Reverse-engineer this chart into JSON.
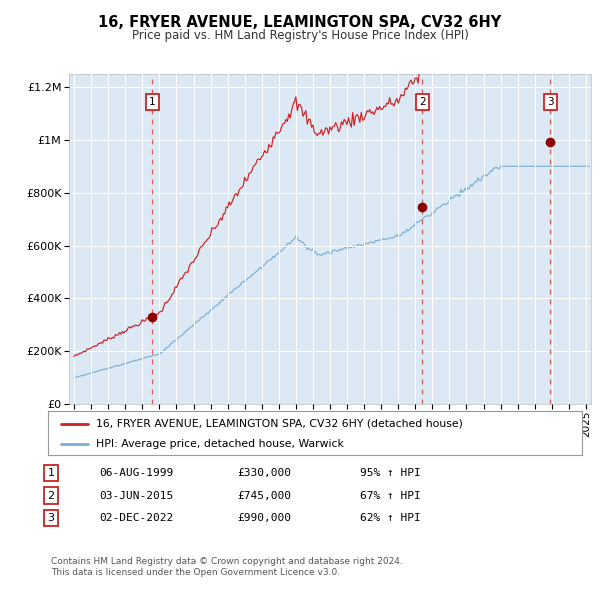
{
  "title": "16, FRYER AVENUE, LEAMINGTON SPA, CV32 6HY",
  "subtitle": "Price paid vs. HM Land Registry's House Price Index (HPI)",
  "legend_line1": "16, FRYER AVENUE, LEAMINGTON SPA, CV32 6HY (detached house)",
  "legend_line2": "HPI: Average price, detached house, Warwick",
  "footer1": "Contains HM Land Registry data © Crown copyright and database right 2024.",
  "footer2": "This data is licensed under the Open Government Licence v3.0.",
  "table": [
    {
      "num": "1",
      "date": "06-AUG-1999",
      "price": "£330,000",
      "hpi": "95% ↑ HPI"
    },
    {
      "num": "2",
      "date": "03-JUN-2015",
      "price": "£745,000",
      "hpi": "67% ↑ HPI"
    },
    {
      "num": "3",
      "date": "02-DEC-2022",
      "price": "£990,000",
      "hpi": "62% ↑ HPI"
    }
  ],
  "sale_dates_num": [
    1999.59,
    2015.42,
    2022.92
  ],
  "sale_prices": [
    330000,
    745000,
    990000
  ],
  "sale_labels": [
    "1",
    "2",
    "3"
  ],
  "red_line_color": "#cc2222",
  "blue_line_color": "#7bafd4",
  "bg_color": "#dce8f4",
  "ylim": [
    0,
    1250000
  ],
  "xlim_start": 1994.7,
  "xlim_end": 2025.3
}
